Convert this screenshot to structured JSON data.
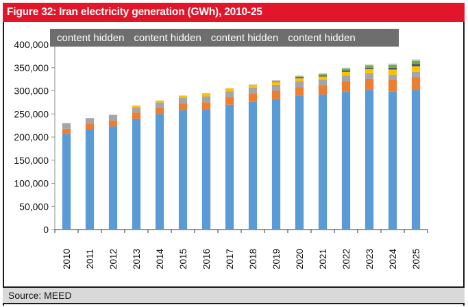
{
  "figure": {
    "title": "Figure 32: Iran electricity generation (GWh), 2010-25",
    "source": "Source: MEED",
    "legend_hidden_labels": [
      "content hidden",
      "content hidden",
      "content hidden",
      "content hidden"
    ]
  },
  "chart_data": {
    "type": "bar",
    "stacked": true,
    "title": "Figure 32: Iran electricity generation (GWh), 2010-25",
    "xlabel": "",
    "ylabel": "",
    "ylim": [
      0,
      400000
    ],
    "y_ticks": [
      0,
      50000,
      100000,
      150000,
      200000,
      250000,
      300000,
      350000,
      400000
    ],
    "y_tick_labels": [
      "0",
      "50,000",
      "100,000",
      "150,000",
      "200,000",
      "250,000",
      "300,000",
      "350,000",
      "400,000"
    ],
    "categories": [
      "2010",
      "2011",
      "2012",
      "2013",
      "2014",
      "2015",
      "2016",
      "2017",
      "2018",
      "2019",
      "2020",
      "2021",
      "2022",
      "2023",
      "2024",
      "2025"
    ],
    "legend_position": "top",
    "grid": false,
    "series": [
      {
        "name": "content hidden (series 1)",
        "color": "#5b9bd5",
        "values": [
          207000,
          217000,
          223000,
          239000,
          250000,
          258000,
          259000,
          270000,
          276000,
          282000,
          289000,
          292000,
          298000,
          302000,
          298000,
          302000
        ]
      },
      {
        "name": "content hidden (series 2)",
        "color": "#ed7d31",
        "values": [
          11000,
          12000,
          13000,
          14000,
          14000,
          15000,
          16000,
          17000,
          18000,
          18000,
          19000,
          20000,
          22000,
          24000,
          25000,
          27000
        ]
      },
      {
        "name": "content hidden (series 3)",
        "color": "#a5a5a5",
        "values": [
          12000,
          12000,
          12000,
          11000,
          11000,
          12000,
          13000,
          12000,
          13000,
          13000,
          12000,
          12000,
          13000,
          12000,
          12000,
          12000
        ]
      },
      {
        "name": "content hidden (series 4)",
        "color": "#ffc000",
        "values": [
          0,
          0,
          0,
          4000,
          4000,
          4000,
          6000,
          6000,
          6000,
          6000,
          7000,
          7000,
          8000,
          9000,
          11000,
          12000
        ]
      },
      {
        "name": "content hidden (series 5)",
        "color": "#44546a",
        "values": [
          0,
          0,
          0,
          0,
          0,
          0,
          0,
          0,
          0,
          1000,
          2000,
          2000,
          3000,
          3000,
          4000,
          5000
        ]
      },
      {
        "name": "content hidden (series 6)",
        "color": "#70ad47",
        "values": [
          0,
          0,
          0,
          0,
          0,
          0,
          0,
          0,
          0,
          1000,
          2000,
          3000,
          4000,
          5000,
          6000,
          7000
        ]
      },
      {
        "name": "content hidden (series 7)",
        "color": "#c9c9c9",
        "values": [
          0,
          0,
          0,
          0,
          0,
          1000,
          1000,
          1000,
          1000,
          2000,
          2000,
          2000,
          2000,
          2000,
          3000,
          3000
        ]
      }
    ]
  }
}
